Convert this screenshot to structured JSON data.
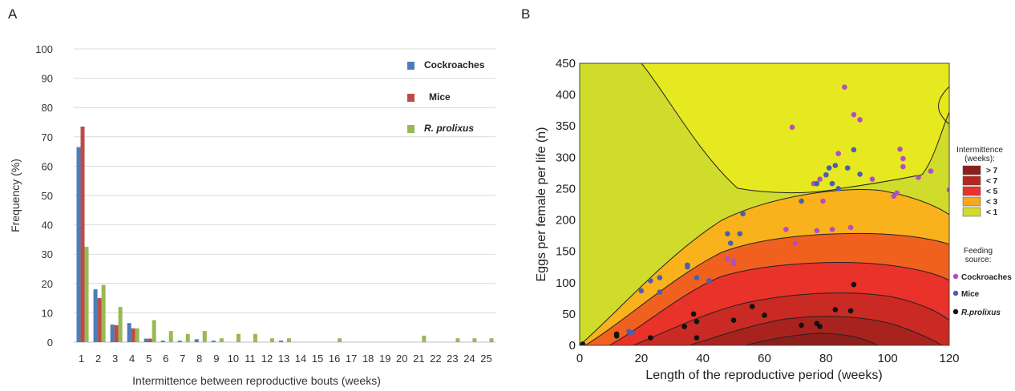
{
  "chart_data": [
    {
      "type": "bar",
      "panel_label": "A",
      "xlabel": "Intermittence between reproductive bouts (weeks)",
      "ylabel": "Frequency (%)",
      "ylim": [
        0,
        100
      ],
      "yticks": [
        0,
        10,
        20,
        30,
        40,
        50,
        60,
        70,
        80,
        90,
        100
      ],
      "grid": true,
      "legend_position": "top-right",
      "categories": [
        "1",
        "2",
        "3",
        "4",
        "5",
        "6",
        "7",
        "8",
        "9",
        "10",
        "11",
        "12",
        "13",
        "14",
        "15",
        "16",
        "17",
        "18",
        "19",
        "20",
        "21",
        "22",
        "23",
        "24",
        "25"
      ],
      "series": [
        {
          "name": "Cockroaches",
          "italic": false,
          "color": "#4a7ebb",
          "values": [
            66.5,
            18,
            6,
            6.5,
            1.2,
            0.5,
            0.5,
            1,
            0.5,
            0,
            0,
            0,
            0.5,
            0,
            0,
            0,
            0,
            0,
            0,
            0,
            0,
            0,
            0,
            0,
            0
          ]
        },
        {
          "name": "Mice",
          "italic": false,
          "color": "#be4b48",
          "values": [
            73.5,
            15,
            5.8,
            4.7,
            1.2,
            0,
            0,
            0,
            0,
            0,
            0,
            0,
            0,
            0,
            0,
            0,
            0,
            0,
            0,
            0,
            0,
            0,
            0,
            0,
            0
          ]
        },
        {
          "name": "R. prolixus",
          "italic": true,
          "color": "#98b954",
          "values": [
            32.5,
            19.5,
            12,
            4.7,
            7.5,
            3.8,
            2.8,
            3.8,
            1.3,
            2.8,
            2.8,
            1.3,
            1.3,
            0,
            0,
            1.3,
            0,
            0,
            0,
            0,
            2.2,
            0,
            1.3,
            1.3,
            1.3
          ]
        }
      ]
    },
    {
      "type": "scatter",
      "panel_label": "B",
      "xlabel": "Length of the reproductive period (weeks)",
      "ylabel": "Eggs per female per life (n)",
      "xlim": [
        0,
        120
      ],
      "ylim": [
        0,
        450
      ],
      "xticks": [
        0,
        20,
        40,
        60,
        80,
        100,
        120
      ],
      "yticks": [
        0,
        50,
        100,
        150,
        200,
        250,
        300,
        350,
        400,
        450
      ],
      "contour_legend": {
        "title": [
          "Intermittence",
          "(weeks):"
        ],
        "levels": [
          {
            "label": "> 7",
            "color": "#8e1e1a"
          },
          {
            "label": "< 7",
            "color": "#b62621"
          },
          {
            "label": "< 5",
            "color": "#e8322a"
          },
          {
            "label": "< 3",
            "color": "#f7a81c"
          },
          {
            "label": "< 1",
            "color": "#cfdc2c"
          }
        ]
      },
      "feeding_legend": {
        "title": [
          "Feeding",
          "source:"
        ]
      },
      "series": [
        {
          "name": "Cockroaches",
          "italic": false,
          "color": "#b24fbf",
          "points": [
            [
              69,
              348
            ],
            [
              70,
              163
            ],
            [
              67,
              185
            ],
            [
              77,
              183
            ],
            [
              76,
              258
            ],
            [
              78,
              265
            ],
            [
              79,
              230
            ],
            [
              82,
              185
            ],
            [
              84,
              306
            ],
            [
              86,
              412
            ],
            [
              88,
              188
            ],
            [
              89,
              368
            ],
            [
              91,
              360
            ],
            [
              95,
              265
            ],
            [
              102,
              238
            ],
            [
              103,
              243
            ],
            [
              104,
              313
            ],
            [
              105,
              298
            ],
            [
              105,
              285
            ],
            [
              110,
              268
            ],
            [
              114,
              278
            ],
            [
              120,
              248
            ],
            [
              48,
              138
            ],
            [
              50,
              135
            ],
            [
              50,
              130
            ]
          ]
        },
        {
          "name": "Mice",
          "italic": false,
          "color": "#4a5fb0",
          "points": [
            [
              16,
              22
            ],
            [
              17,
              20
            ],
            [
              20,
              87
            ],
            [
              23,
              103
            ],
            [
              26,
              85
            ],
            [
              26,
              108
            ],
            [
              35,
              128
            ],
            [
              35,
              125
            ],
            [
              38,
              108
            ],
            [
              42,
              103
            ],
            [
              48,
              178
            ],
            [
              49,
              163
            ],
            [
              52,
              178
            ],
            [
              53,
              210
            ],
            [
              72,
              230
            ],
            [
              77,
              258
            ],
            [
              80,
              272
            ],
            [
              81,
              283
            ],
            [
              82,
              258
            ],
            [
              83,
              287
            ],
            [
              84,
              250
            ],
            [
              87,
              283
            ],
            [
              89,
              312
            ],
            [
              91,
              273
            ]
          ]
        },
        {
          "name": "R.prolixus",
          "italic": true,
          "color": "#111111",
          "points": [
            [
              1,
              2
            ],
            [
              12,
              15
            ],
            [
              12,
              18
            ],
            [
              23,
              12
            ],
            [
              34,
              30
            ],
            [
              37,
              50
            ],
            [
              38,
              38
            ],
            [
              38,
              12
            ],
            [
              50,
              40
            ],
            [
              56,
              62
            ],
            [
              60,
              48
            ],
            [
              72,
              32
            ],
            [
              77,
              35
            ],
            [
              78,
              30
            ],
            [
              83,
              57
            ],
            [
              88,
              55
            ],
            [
              89,
              97
            ]
          ]
        }
      ]
    }
  ]
}
